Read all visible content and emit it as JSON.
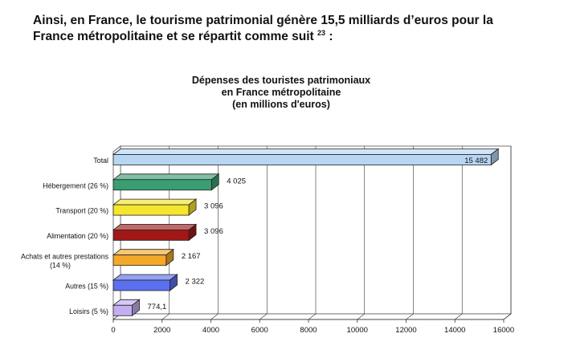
{
  "intro": {
    "line1": "Ainsi, en France, le tourisme patrimonial génère 15,5 milliards d’euros pour la",
    "line2": "France métropolitaine et se répartit comme suit",
    "footnote_ref": "23",
    "line2_end": " :"
  },
  "chart_data": {
    "type": "bar",
    "orientation": "horizontal",
    "title_lines": [
      "Dépenses des touristes patrimoniaux",
      "en France métropolitaine",
      "(en millions d'euros)"
    ],
    "categories": [
      "Total",
      "Hébergement (26 %)",
      "Transport (20 %)",
      "Alimentation (20 %)",
      "Achats et autres prestations (14 %)",
      "Autres (15 %)",
      "Loisirs (5 %)"
    ],
    "category_lines": [
      [
        "Total"
      ],
      [
        "Hébergement (26 %)"
      ],
      [
        "Transport (20 %)"
      ],
      [
        "Alimentation (20 %)"
      ],
      [
        "Achats et autres prestations",
        "(14 %)"
      ],
      [
        "Autres (15 %)"
      ],
      [
        "Loisirs (5 %)"
      ]
    ],
    "values": [
      15482,
      4025,
      3096,
      3096,
      2167,
      2322,
      774.1
    ],
    "value_labels": [
      "15 482",
      "4 025",
      "3 096",
      "3 096",
      "2 167",
      "2 322",
      "774,1"
    ],
    "colors": [
      "#b7d6f4",
      "#3a9e72",
      "#f5e52c",
      "#a01818",
      "#f4a82a",
      "#5b70ee",
      "#c2aef0"
    ],
    "xlim": [
      0,
      16000
    ],
    "xticks": [
      0,
      2000,
      4000,
      6000,
      8000,
      10000,
      12000,
      14000,
      16000
    ],
    "grid": true,
    "three_d": true
  }
}
